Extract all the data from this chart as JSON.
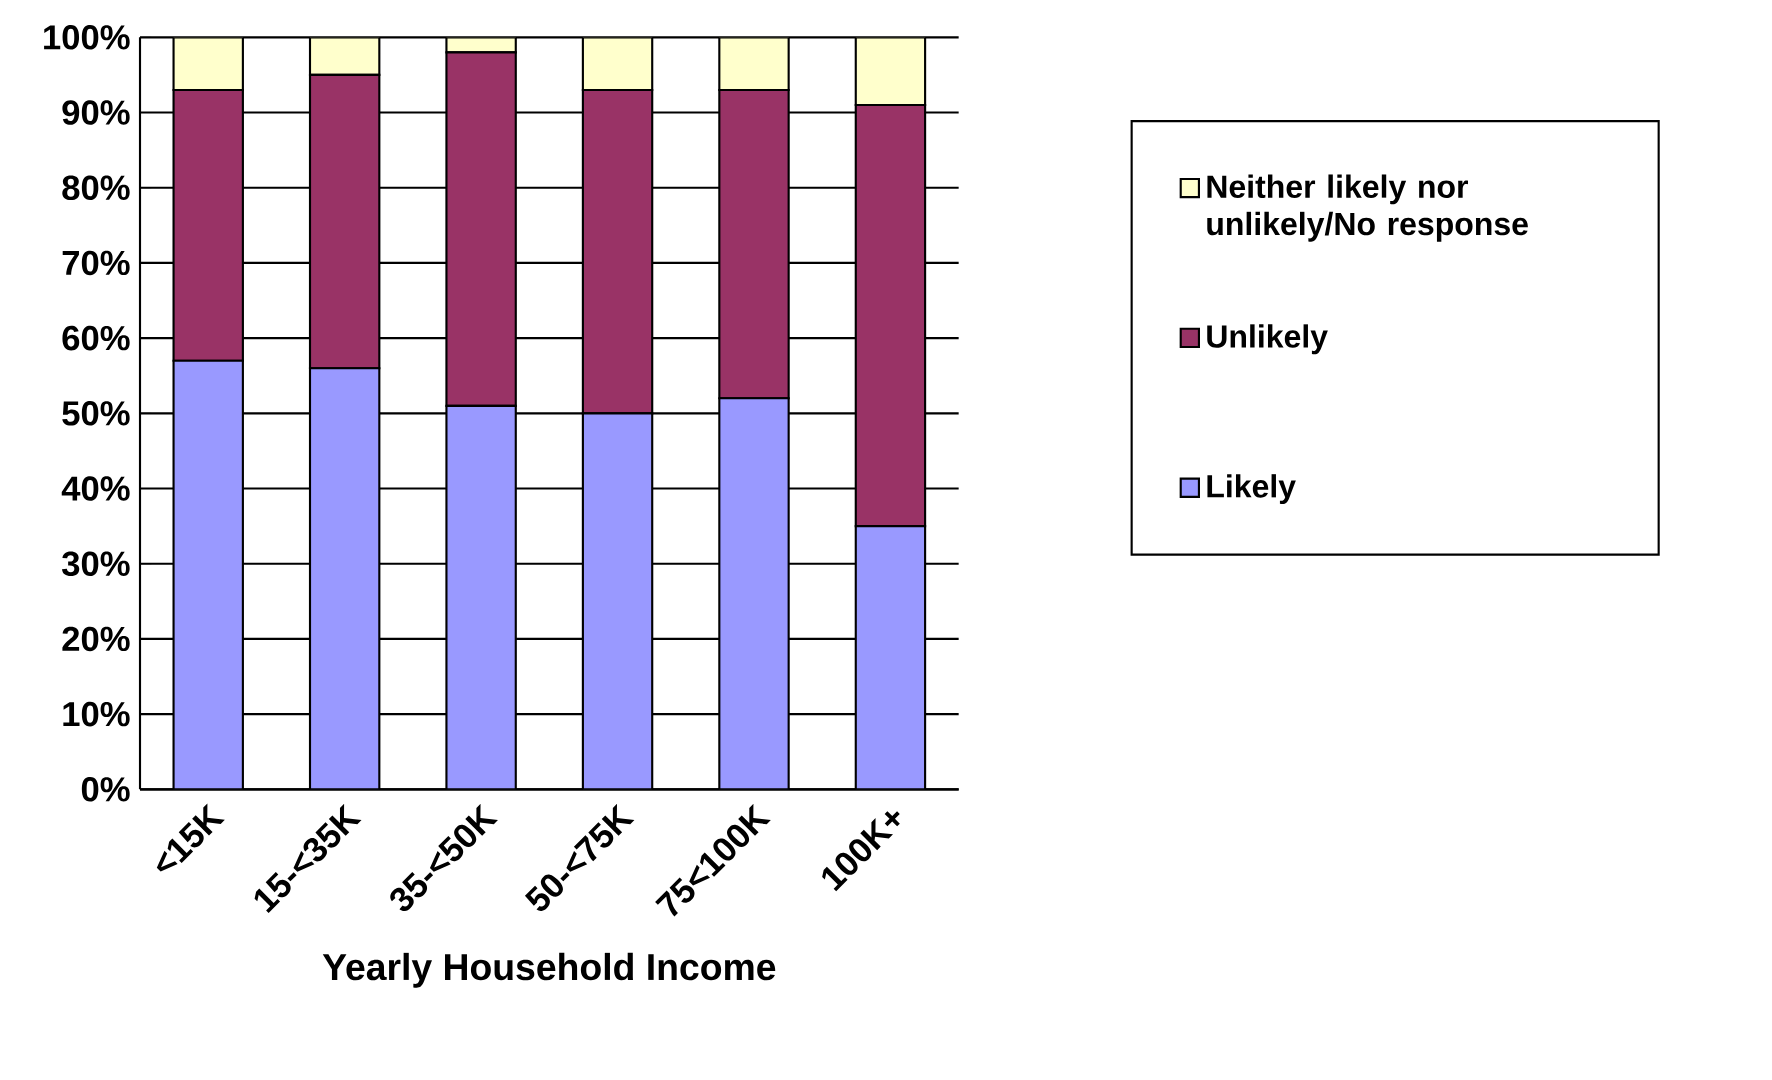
{
  "chart_data": {
    "type": "bar",
    "stacked": true,
    "xlabel": "Yearly Household Income",
    "categories": [
      "<15K",
      "15-<35K",
      "35-<50K",
      "50-<75K",
      "75<100K",
      "100K+"
    ],
    "series": [
      {
        "name": "Likely",
        "color": "#9999ff",
        "values": [
          57,
          56,
          51,
          50,
          52,
          35
        ]
      },
      {
        "name": "Unlikely",
        "color": "#993366",
        "values": [
          36,
          39,
          47,
          43,
          41,
          56
        ]
      },
      {
        "name": "Neither likely nor unlikely/No response",
        "color": "#ffffcc",
        "values": [
          7,
          5,
          2,
          7,
          7,
          9
        ]
      }
    ],
    "ylim": [
      0,
      100
    ],
    "yticks": [
      {
        "value": 0,
        "label": "0%"
      },
      {
        "value": 10,
        "label": "10%"
      },
      {
        "value": 20,
        "label": "20%"
      },
      {
        "value": 30,
        "label": "30%"
      },
      {
        "value": 40,
        "label": "40%"
      },
      {
        "value": 50,
        "label": "50%"
      },
      {
        "value": 60,
        "label": "60%"
      },
      {
        "value": 70,
        "label": "70%"
      },
      {
        "value": 80,
        "label": "80%"
      },
      {
        "value": 90,
        "label": "90%"
      },
      {
        "value": 100,
        "label": "100%"
      }
    ],
    "grid": "y",
    "legend": "right"
  }
}
